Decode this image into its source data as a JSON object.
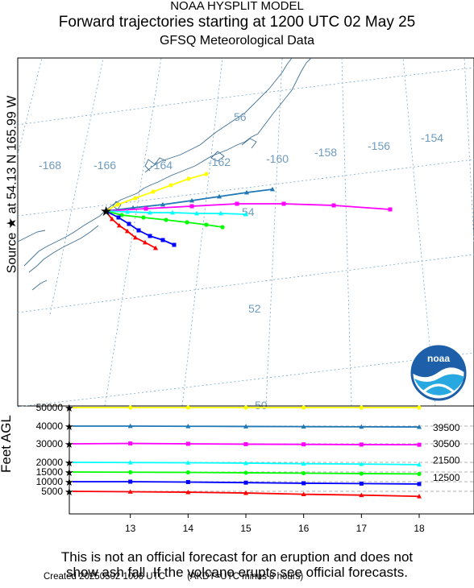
{
  "header": {
    "line1": "NOAA HYSPLIT MODEL",
    "line2": "Forward trajectories starting at 1200 UTC 02 May 25",
    "line3": "GFSQ Meteorological Data"
  },
  "side_label": "Source ★ at 54.13 N 165.99 W",
  "height_axis_label": "Feet AGL",
  "logo_text": "noaa",
  "disclaimer": {
    "line1": "This is not an official forecast for an eruption and does not",
    "line2": "show ash fall. If the volcano erupts see official forecasts."
  },
  "footer": {
    "created": "Created 20250502 1006 UTC",
    "note": "(AKDT=UTC minus 8 hours)"
  },
  "map_labels": {
    "longitudes": [
      "-168",
      "-166",
      "-164",
      "-162",
      "-160",
      "-158",
      "-156",
      "-154"
    ],
    "latitudes": [
      "56",
      "54",
      "52",
      "50"
    ]
  },
  "colors": {
    "grid": "#7aa7c9",
    "coast": "#3f6f93",
    "grid_label": "#6f9bc0",
    "logo_blue": "#1d5fa8",
    "logo_light": "#28a8e0"
  },
  "chart_data": {
    "type": "line",
    "x_label": "",
    "x_ticks": [
      "13",
      "14",
      "15",
      "16",
      "17",
      "18"
    ],
    "x": [
      12,
      13,
      14,
      15,
      16,
      17,
      18
    ],
    "y_axis_labels": [
      "50000",
      "40000",
      "30000",
      "20000",
      "15000",
      "10000",
      "5000"
    ],
    "right_labels": [
      "39500",
      "30500",
      "21500",
      "12500"
    ],
    "series": [
      {
        "color": "#ffff00",
        "marker": "circle",
        "values": [
          50000,
          50000,
          50000,
          50000,
          50000,
          50000,
          50000
        ]
      },
      {
        "color": "#1f77b4",
        "marker": "triangle",
        "values": [
          40000,
          40000,
          39900,
          39800,
          39700,
          39600,
          39500
        ]
      },
      {
        "color": "#ff00ff",
        "marker": "square",
        "values": [
          30000,
          30200,
          30000,
          29800,
          29700,
          29600,
          29500
        ]
      },
      {
        "color": "#00ffff",
        "marker": "triangle",
        "values": [
          20000,
          19900,
          19800,
          19600,
          19300,
          19100,
          18800
        ]
      },
      {
        "color": "#00ff00",
        "marker": "circle",
        "values": [
          15000,
          14900,
          14800,
          14600,
          14400,
          14200,
          14000
        ]
      },
      {
        "color": "#0000ff",
        "marker": "square",
        "values": [
          10000,
          10000,
          9800,
          9500,
          9200,
          9000,
          8800
        ]
      },
      {
        "color": "#ff0000",
        "marker": "triangle",
        "values": [
          5000,
          4900,
          4800,
          4600,
          4300,
          4100,
          3800
        ]
      }
    ]
  }
}
